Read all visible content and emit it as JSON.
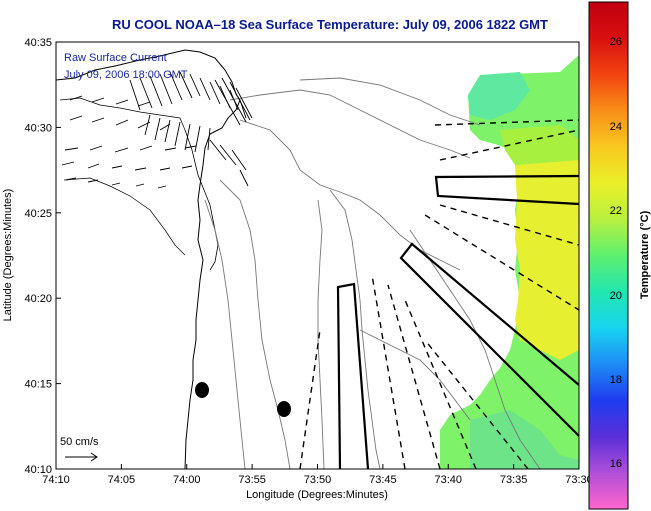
{
  "title": "RU COOL  NOAA–18  Sea Surface Temperature:  July 09, 2006 1822 GMT",
  "overlay": {
    "line1": "Raw Surface Current",
    "line2": "July 09, 2006 18:00 GMT"
  },
  "axes": {
    "xlabel": "Longitude (Degrees:Minutes)",
    "ylabel": "Latitude (Degrees:Minutes)",
    "x_ticks": [
      "74:10",
      "74:05",
      "74:00",
      "73:55",
      "73:50",
      "73:45",
      "73:40",
      "73:35",
      "73:30"
    ],
    "y_ticks": [
      "40:10",
      "40:15",
      "40:20",
      "40:25",
      "40:30",
      "40:35"
    ]
  },
  "colorbar": {
    "label": "Temperature (°C)",
    "ticks": [
      "16",
      "18",
      "20",
      "22",
      "24",
      "26"
    ],
    "colors": [
      "#ff66cc",
      "#b04fd8",
      "#5a2fd8",
      "#1f3cf0",
      "#1e8cf5",
      "#18d4f0",
      "#22e6b0",
      "#5ef06e",
      "#b8f040",
      "#eaf028",
      "#f8c820",
      "#f88e18",
      "#f24410",
      "#d81010",
      "#c00010"
    ]
  },
  "scale": {
    "label": "50 cm/s"
  },
  "colors": {
    "title": "#0a1a8c",
    "sst_green": "#7ef268",
    "sst_yellow": "#e6ef30",
    "sst_cyan": "#3ee6d2"
  }
}
